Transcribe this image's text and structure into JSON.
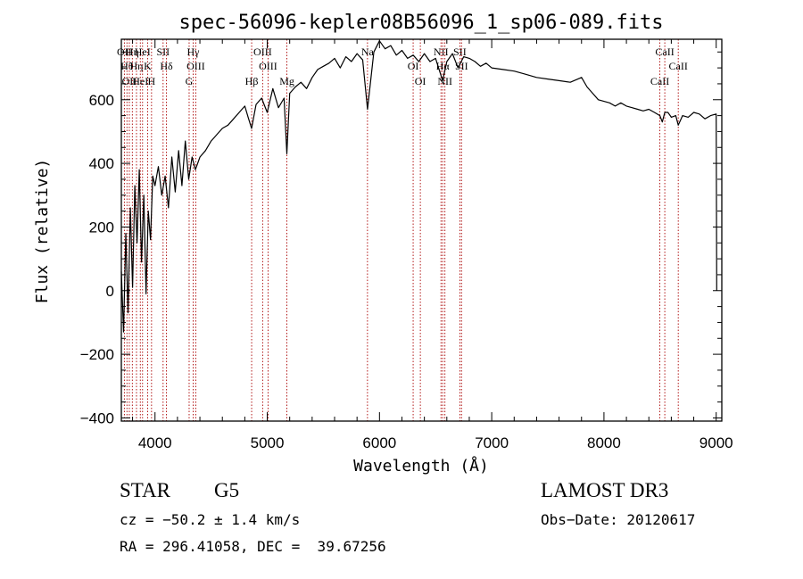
{
  "chart_data": {
    "type": "line",
    "title": "spec-56096-kepler08B56096_1_sp06-089.fits",
    "xlabel": "Wavelength (Å)",
    "ylabel": "Flux (relative)",
    "xlim": [
      3700,
      9050
    ],
    "ylim": [
      -410,
      790
    ],
    "xticks": [
      4000,
      5000,
      6000,
      7000,
      8000,
      9000
    ],
    "yticks": [
      -400,
      -200,
      0,
      200,
      400,
      600
    ],
    "xtick_labels": [
      "4000",
      "5000",
      "6000",
      "7000",
      "8000",
      "9000"
    ],
    "ytick_labels": [
      "−400",
      "−200",
      "0",
      "200",
      "400",
      "600"
    ],
    "series": [
      {
        "name": "flux",
        "x": [
          3700,
          3720,
          3740,
          3760,
          3780,
          3800,
          3820,
          3840,
          3860,
          3880,
          3900,
          3920,
          3940,
          3960,
          3980,
          4000,
          4030,
          4060,
          4090,
          4120,
          4150,
          4180,
          4210,
          4240,
          4270,
          4300,
          4330,
          4360,
          4400,
          4450,
          4500,
          4550,
          4600,
          4650,
          4700,
          4750,
          4800,
          4830,
          4861,
          4900,
          4950,
          5000,
          5050,
          5100,
          5150,
          5175,
          5200,
          5250,
          5300,
          5350,
          5400,
          5450,
          5500,
          5550,
          5600,
          5650,
          5700,
          5750,
          5800,
          5850,
          5893,
          5950,
          6000,
          6050,
          6100,
          6150,
          6200,
          6250,
          6300,
          6350,
          6400,
          6450,
          6500,
          6563,
          6600,
          6650,
          6700,
          6750,
          6800,
          6850,
          6900,
          6950,
          7000,
          7100,
          7200,
          7300,
          7400,
          7500,
          7600,
          7700,
          7800,
          7850,
          7900,
          7950,
          8000,
          8050,
          8100,
          8150,
          8200,
          8250,
          8300,
          8350,
          8400,
          8450,
          8498,
          8520,
          8542,
          8570,
          8600,
          8640,
          8662,
          8700,
          8750,
          8800,
          8850,
          8900,
          8950,
          9000,
          9005
        ],
        "y": [
          60,
          -130,
          180,
          -70,
          260,
          10,
          330,
          150,
          380,
          90,
          300,
          -10,
          250,
          160,
          360,
          330,
          390,
          300,
          360,
          260,
          420,
          310,
          440,
          330,
          470,
          350,
          420,
          380,
          420,
          440,
          470,
          490,
          510,
          520,
          540,
          560,
          580,
          545,
          510,
          585,
          605,
          560,
          635,
          575,
          605,
          430,
          620,
          640,
          655,
          635,
          670,
          695,
          705,
          715,
          730,
          700,
          735,
          720,
          745,
          725,
          570,
          750,
          785,
          760,
          770,
          740,
          755,
          730,
          740,
          720,
          745,
          720,
          730,
          660,
          720,
          745,
          700,
          735,
          730,
          720,
          705,
          715,
          700,
          695,
          690,
          680,
          670,
          665,
          660,
          655,
          670,
          640,
          620,
          600,
          595,
          590,
          580,
          590,
          580,
          575,
          570,
          565,
          570,
          560,
          550,
          530,
          560,
          560,
          545,
          550,
          520,
          550,
          545,
          560,
          555,
          540,
          550,
          555,
          0
        ]
      }
    ],
    "lines": [
      {
        "wl": 3727,
        "label": "OII"
      },
      {
        "wl": 3750,
        "label": "Hθ"
      },
      {
        "wl": 3771,
        "label": "OII"
      },
      {
        "wl": 3798,
        "label": "Hη"
      },
      {
        "wl": 3835,
        "label": "Hη"
      },
      {
        "wl": 3869,
        "label": "HeI"
      },
      {
        "wl": 3889,
        "label": "HeI"
      },
      {
        "wl": 3934,
        "label": "K"
      },
      {
        "wl": 3969,
        "label": "H"
      },
      {
        "wl": 4072,
        "label": "SII"
      },
      {
        "wl": 4102,
        "label": "Hδ"
      },
      {
        "wl": 4304,
        "label": "G"
      },
      {
        "wl": 4340,
        "label": "Hγ"
      },
      {
        "wl": 4363,
        "label": "OIII"
      },
      {
        "wl": 4861,
        "label": "Hβ"
      },
      {
        "wl": 4959,
        "label": "OIII"
      },
      {
        "wl": 5007,
        "label": "OIII"
      },
      {
        "wl": 5175,
        "label": "Mg"
      },
      {
        "wl": 5893,
        "label": "Na"
      },
      {
        "wl": 6300,
        "label": "OI"
      },
      {
        "wl": 6364,
        "label": "OI"
      },
      {
        "wl": 6548,
        "label": "NII"
      },
      {
        "wl": 6563,
        "label": "Hα"
      },
      {
        "wl": 6583,
        "label": "NII"
      },
      {
        "wl": 6716,
        "label": "SII"
      },
      {
        "wl": 6731,
        "label": "SII"
      },
      {
        "wl": 8498,
        "label": "CaII"
      },
      {
        "wl": 8542,
        "label": "CaII"
      },
      {
        "wl": 8662,
        "label": "CaII"
      }
    ]
  },
  "info": {
    "object_class": "STAR",
    "subclass": "G5",
    "survey": "LAMOST DR3",
    "cz": "cz = −50.2 ± 1.4 km/s",
    "obs_date": "Obs−Date: 20120617",
    "coords": "RA = 296.41058, DEC =  39.67256"
  },
  "colors": {
    "spectrum": "#000000",
    "line_marker": "#aa0000",
    "background": "#ffffff"
  }
}
